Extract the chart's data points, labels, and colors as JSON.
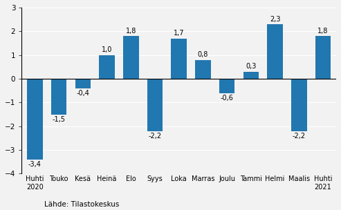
{
  "categories": [
    "Huhti\n2020",
    "Touko",
    "Kesä",
    "Heinä",
    "Elo",
    "Syys",
    "Loka",
    "Marras",
    "Joulu",
    "Tammi",
    "Helmi",
    "Maalis",
    "Huhti\n2021"
  ],
  "values": [
    -3.4,
    -1.5,
    -0.4,
    1.0,
    1.8,
    -2.2,
    1.7,
    0.8,
    -0.6,
    0.3,
    2.3,
    -2.2,
    1.8
  ],
  "bar_color": "#2177b0",
  "ylim": [
    -4,
    3
  ],
  "yticks": [
    -4,
    -3,
    -2,
    -1,
    0,
    1,
    2,
    3
  ],
  "source_text": "Lähde: Tilastokeskus",
  "background_color": "#f2f2f2",
  "grid_color": "#ffffff"
}
